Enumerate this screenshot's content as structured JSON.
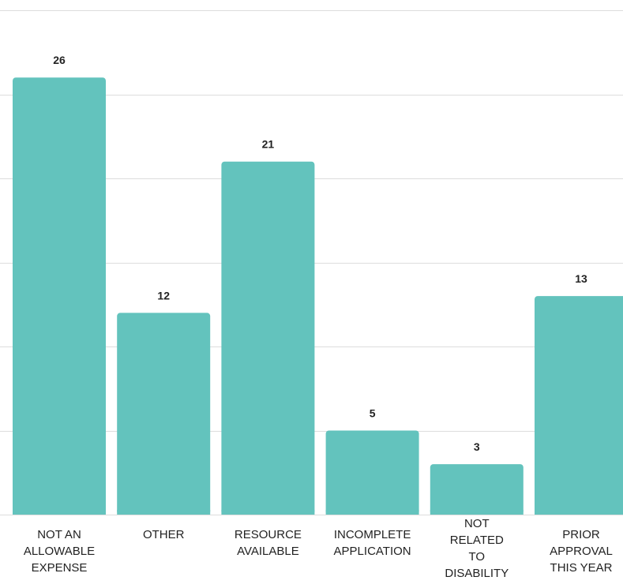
{
  "chart_data": {
    "type": "bar",
    "title": "",
    "xlabel": "",
    "ylabel": "",
    "categories": [
      [
        "NOT AN",
        "ALLOWABLE",
        "EXPENSE"
      ],
      [
        "OTHER"
      ],
      [
        "RESOURCE",
        "AVAILABLE"
      ],
      [
        "INCOMPLETE",
        "APPLICATION"
      ],
      [
        "NOT",
        "RELATED",
        "TO",
        "DISABILITY"
      ],
      [
        "PRIOR",
        "APPROVAL",
        "THIS YEAR"
      ]
    ],
    "values": [
      26,
      12,
      21,
      5,
      3,
      13
    ],
    "ylim": [
      0,
      30
    ],
    "grid": true,
    "data_labels": true,
    "colors": {
      "bar": "#63c3bd",
      "grid": "#dddddd",
      "text": "#222222"
    }
  }
}
